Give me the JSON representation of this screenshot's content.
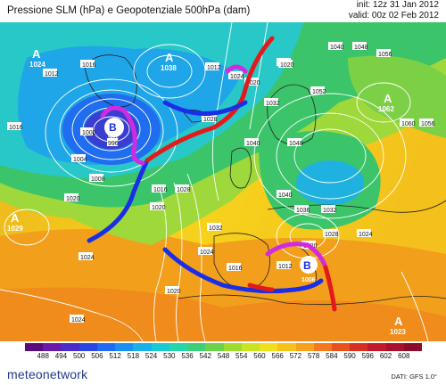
{
  "header": {
    "title": "Pressione SLM (hPa) e Geopotenziale 500hPa (dam)",
    "init": "init: 12z 31 Jan 2012",
    "valid": "valid: 00z 02 Feb 2012"
  },
  "map": {
    "pressure_centers": [
      {
        "type": "A",
        "value": "1024"
      },
      {
        "type": "A",
        "value": "1038"
      },
      {
        "type": "A",
        "value": "1062"
      },
      {
        "type": "A",
        "value": "1029"
      },
      {
        "type": "A",
        "value": "1023"
      },
      {
        "type": "B",
        "value": "981"
      },
      {
        "type": "B",
        "value": "1006"
      }
    ],
    "isobar_labels": [
      "1012",
      "1016",
      "1012",
      "1024",
      "1040",
      "1048",
      "1056",
      "1016",
      "1020",
      "1024",
      "1028",
      "1032",
      "1052",
      "1060",
      "1056",
      "1008",
      "1004",
      "1000",
      "996",
      "1020",
      "1024",
      "1028",
      "1020",
      "1040",
      "1048",
      "1040",
      "1032",
      "1028",
      "1020",
      "1036",
      "1032",
      "1024",
      "1016",
      "1012",
      "1024",
      "1020",
      "1024",
      "1020",
      "1016"
    ],
    "fronts": [
      "cold-front",
      "warm-front",
      "occluded-front"
    ]
  },
  "legend": {
    "ticks": [
      "488",
      "494",
      "500",
      "506",
      "512",
      "518",
      "524",
      "530",
      "536",
      "542",
      "548",
      "554",
      "560",
      "566",
      "572",
      "578",
      "584",
      "590",
      "596",
      "602",
      "608"
    ],
    "colors": [
      "#5b0a7a",
      "#6a1aa6",
      "#4b2cc8",
      "#2b46e0",
      "#1f6af0",
      "#1a8ff0",
      "#17b0e8",
      "#19c9d0",
      "#25d6a8",
      "#3ccf78",
      "#6ad24a",
      "#9cdc2e",
      "#c8e41e",
      "#eee01a",
      "#f6c21a",
      "#f7a01c",
      "#f27a1c",
      "#e8521c",
      "#d83020",
      "#c21a2a",
      "#a8102e",
      "#8a0c2a"
    ]
  },
  "footer": {
    "source": "DATI: GFS 1.0°",
    "logo": "meteonetwork"
  }
}
